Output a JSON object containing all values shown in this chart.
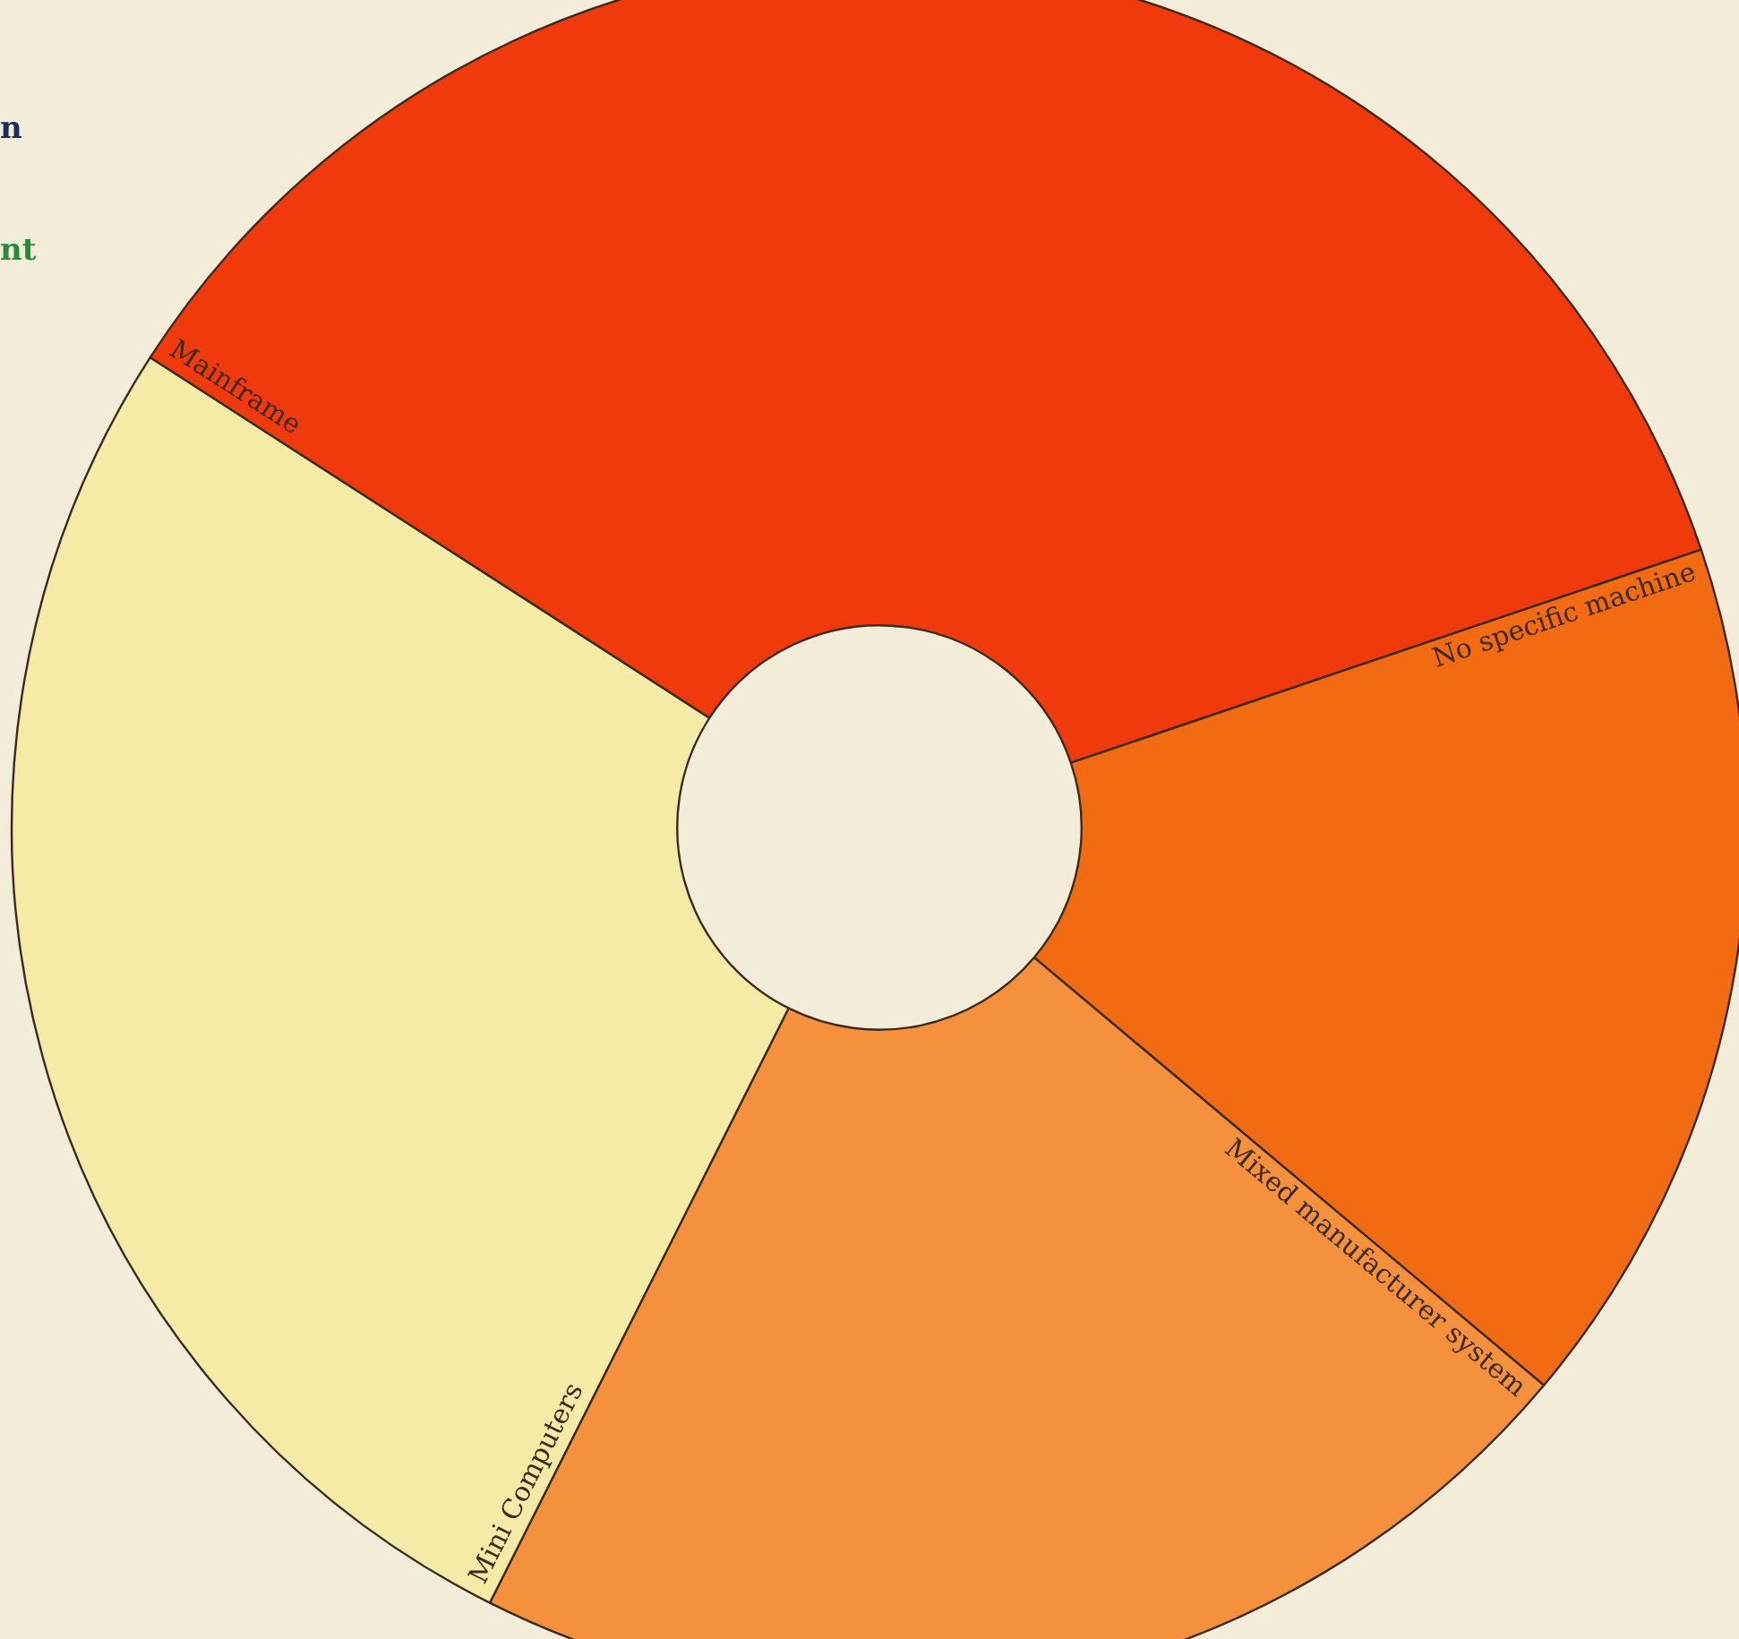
{
  "chart_data": {
    "type": "donut",
    "categories": [
      "Mainframe",
      "No specific machine",
      "Mixed manufacturer system",
      "Mini Computers"
    ],
    "values": [
      35.7,
      16.3,
      21.3,
      26.7
    ],
    "colors": [
      "#f03a0c",
      "#f26a12",
      "#f5913c",
      "#f4eca6"
    ],
    "legend": false,
    "annotations": [
      "n",
      "nt"
    ]
  }
}
